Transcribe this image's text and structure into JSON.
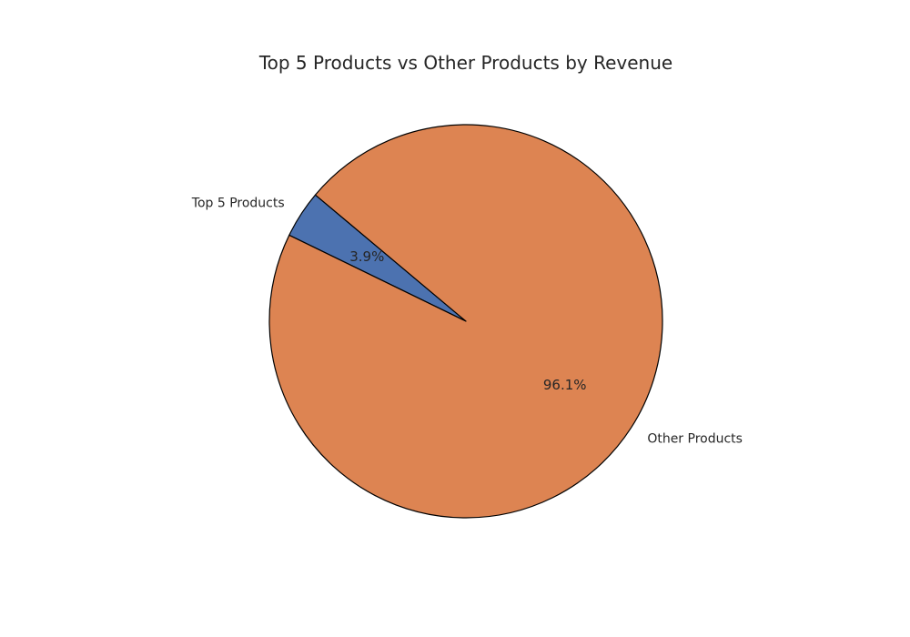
{
  "chart_data": {
    "type": "pie",
    "title": "Top 5 Products vs Other Products by Revenue",
    "labels": [
      "Top 5 Products",
      "Other Products"
    ],
    "values": [
      3.9,
      96.1
    ],
    "percent_labels": [
      "3.9%",
      "96.1%"
    ],
    "colors": [
      "#4c72b0",
      "#dd8452"
    ],
    "start_angle_deg": 140,
    "direction": "counterclockwise",
    "edge_color": "#000000",
    "legend": "none"
  }
}
